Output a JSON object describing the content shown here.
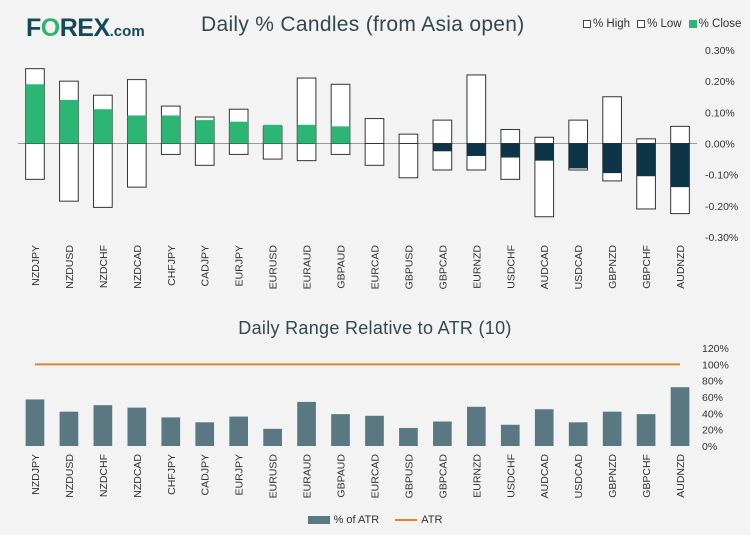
{
  "logo": {
    "pre": "F",
    "o": "O",
    "post": "REX",
    "com": ".com"
  },
  "candles_title": "Daily % Candles (from Asia open)",
  "ranges_title": "Daily Range Relative to ATR (10)",
  "legend_candles": {
    "high": "% High",
    "low": "% Low",
    "close": "% Close"
  },
  "legend_atr": {
    "bar": "% of ATR",
    "line": "ATR"
  },
  "colors": {
    "green": "#2bb673",
    "navy": "#0d3547",
    "bar": "#5a7881",
    "atr_line": "#e8812b"
  },
  "chart_data": [
    {
      "type": "candlestick",
      "title": "Daily % Candles (from Asia open)",
      "ylim": [
        -0.3,
        0.3
      ],
      "yticks": [
        "0.30%",
        "0.20%",
        "0.10%",
        "0.00%",
        "-0.10%",
        "-0.20%",
        "-0.30%"
      ],
      "categories": [
        "NZDJPY",
        "NZDUSD",
        "NZDCHF",
        "NZDCAD",
        "CHFJPY",
        "CADJPY",
        "EURJPY",
        "EURUSD",
        "EURAUD",
        "GBPAUD",
        "EURCAD",
        "GBPUSD",
        "GBPCAD",
        "EURNZD",
        "USDCHF",
        "AUDCAD",
        "USDCAD",
        "GBPNZD",
        "GBPCHF",
        "AUDNZD"
      ],
      "high": [
        0.24,
        0.2,
        0.155,
        0.205,
        0.12,
        0.085,
        0.11,
        0.055,
        0.21,
        0.19,
        0.08,
        0.03,
        0.075,
        0.22,
        0.045,
        0.02,
        0.075,
        0.15,
        0.015,
        0.055
      ],
      "low": [
        -0.115,
        -0.185,
        -0.205,
        -0.14,
        -0.035,
        -0.07,
        -0.035,
        -0.05,
        -0.055,
        -0.035,
        -0.07,
        -0.11,
        -0.085,
        -0.085,
        -0.115,
        -0.235,
        -0.085,
        -0.12,
        -0.21,
        -0.225
      ],
      "close": [
        0.19,
        0.14,
        0.11,
        0.09,
        0.09,
        0.075,
        0.07,
        0.06,
        0.06,
        0.055,
        0.0,
        0.0,
        -0.025,
        -0.04,
        -0.045,
        -0.055,
        -0.08,
        -0.095,
        -0.105,
        -0.14
      ]
    },
    {
      "type": "bar+line",
      "title": "Daily Range Relative to ATR (10)",
      "ylim": [
        0,
        120
      ],
      "yticks": [
        "120%",
        "100%",
        "80%",
        "60%",
        "40%",
        "20%",
        "0%"
      ],
      "categories": [
        "NZDJPY",
        "NZDUSD",
        "NZDCHF",
        "NZDCAD",
        "CHFJPY",
        "CADJPY",
        "EURJPY",
        "EURUSD",
        "EURAUD",
        "GBPAUD",
        "EURCAD",
        "GBPUSD",
        "GBPCAD",
        "EURNZD",
        "USDCHF",
        "AUDCAD",
        "USDCAD",
        "GBPNZD",
        "GBPCHF",
        "AUDNZD"
      ],
      "series": [
        {
          "name": "% of ATR",
          "type": "bar",
          "values": [
            57,
            42,
            50,
            47,
            35,
            29,
            36,
            21,
            54,
            39,
            37,
            22,
            30,
            48,
            26,
            45,
            29,
            42,
            39,
            72
          ]
        },
        {
          "name": "ATR",
          "type": "line",
          "values": [
            100,
            100,
            100,
            100,
            100,
            100,
            100,
            100,
            100,
            100,
            100,
            100,
            100,
            100,
            100,
            100,
            100,
            100,
            100,
            100
          ]
        }
      ]
    }
  ]
}
